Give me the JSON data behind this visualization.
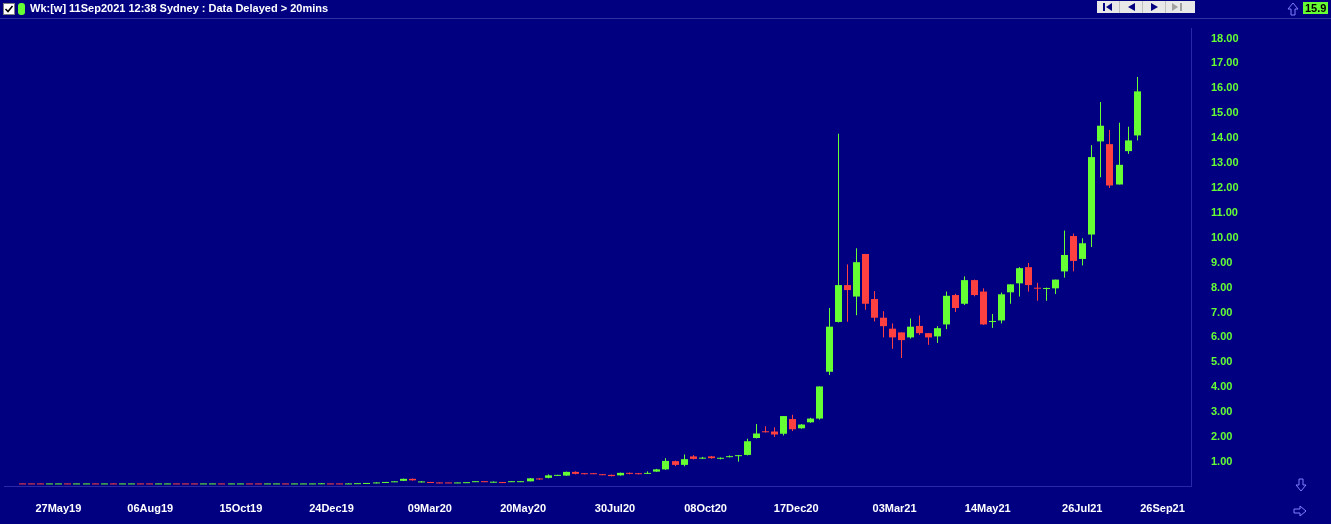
{
  "chart_data": {
    "type": "candlestick",
    "title": "Wk:[w]  11Sep2021 12:38 Sydney : Data Delayed > 20mins",
    "x": [
      "2019-04-29",
      "2019-05-06",
      "2019-05-13",
      "2019-05-20",
      "2019-05-27",
      "2019-06-03",
      "2019-06-10",
      "2019-06-17",
      "2019-06-24",
      "2019-07-01",
      "2019-07-08",
      "2019-07-15",
      "2019-07-22",
      "2019-07-29",
      "2019-08-05",
      "2019-08-12",
      "2019-08-19",
      "2019-08-26",
      "2019-09-02",
      "2019-09-09",
      "2019-09-16",
      "2019-09-23",
      "2019-09-30",
      "2019-10-07",
      "2019-10-14",
      "2019-10-21",
      "2019-10-28",
      "2019-11-04",
      "2019-11-11",
      "2019-11-18",
      "2019-11-25",
      "2019-12-02",
      "2019-12-09",
      "2019-12-16",
      "2019-12-23",
      "2019-12-30",
      "2020-01-06",
      "2020-01-13",
      "2020-01-20",
      "2020-01-27",
      "2020-02-03",
      "2020-02-10",
      "2020-02-17",
      "2020-02-24",
      "2020-03-02",
      "2020-03-09",
      "2020-03-16",
      "2020-03-23",
      "2020-03-30",
      "2020-04-06",
      "2020-04-13",
      "2020-04-20",
      "2020-04-27",
      "2020-05-04",
      "2020-05-11",
      "2020-05-18",
      "2020-05-25",
      "2020-06-01",
      "2020-06-08",
      "2020-06-15",
      "2020-06-22",
      "2020-06-29",
      "2020-07-06",
      "2020-07-13",
      "2020-07-20",
      "2020-07-27",
      "2020-08-03",
      "2020-08-10",
      "2020-08-17",
      "2020-08-24",
      "2020-08-31",
      "2020-09-07",
      "2020-09-14",
      "2020-09-21",
      "2020-09-28",
      "2020-10-05",
      "2020-10-12",
      "2020-10-19",
      "2020-10-26",
      "2020-11-02",
      "2020-11-09",
      "2020-11-16",
      "2020-11-23",
      "2020-11-30",
      "2020-12-07",
      "2020-12-14",
      "2020-12-21",
      "2020-12-28",
      "2021-01-04",
      "2021-01-11",
      "2021-01-18",
      "2021-01-25",
      "2021-02-01",
      "2021-02-08",
      "2021-02-15",
      "2021-02-22",
      "2021-03-01",
      "2021-03-08",
      "2021-03-15",
      "2021-03-22",
      "2021-03-29",
      "2021-04-05",
      "2021-04-12",
      "2021-04-19",
      "2021-04-26",
      "2021-05-03",
      "2021-05-10",
      "2021-05-17",
      "2021-05-24",
      "2021-05-31",
      "2021-06-07",
      "2021-06-14",
      "2021-06-21",
      "2021-06-28",
      "2021-07-05",
      "2021-07-12",
      "2021-07-19",
      "2021-07-26",
      "2021-08-02",
      "2021-08-09",
      "2021-08-16",
      "2021-08-23",
      "2021-08-30",
      "2021-09-06"
    ],
    "ohlc": [
      [
        0.12,
        0.12,
        0.11,
        0.11
      ],
      [
        0.12,
        0.12,
        0.11,
        0.11
      ],
      [
        0.12,
        0.12,
        0.11,
        0.11
      ],
      [
        0.11,
        0.12,
        0.11,
        0.12
      ],
      [
        0.11,
        0.12,
        0.11,
        0.12
      ],
      [
        0.12,
        0.12,
        0.11,
        0.11
      ],
      [
        0.11,
        0.12,
        0.11,
        0.12
      ],
      [
        0.11,
        0.12,
        0.11,
        0.12
      ],
      [
        0.12,
        0.12,
        0.11,
        0.11
      ],
      [
        0.11,
        0.12,
        0.11,
        0.12
      ],
      [
        0.12,
        0.14,
        0.11,
        0.11
      ],
      [
        0.11,
        0.12,
        0.11,
        0.12
      ],
      [
        0.11,
        0.12,
        0.11,
        0.12
      ],
      [
        0.12,
        0.12,
        0.11,
        0.11
      ],
      [
        0.12,
        0.12,
        0.11,
        0.11
      ],
      [
        0.11,
        0.12,
        0.11,
        0.12
      ],
      [
        0.11,
        0.12,
        0.11,
        0.12
      ],
      [
        0.12,
        0.12,
        0.11,
        0.11
      ],
      [
        0.12,
        0.12,
        0.11,
        0.11
      ],
      [
        0.12,
        0.12,
        0.11,
        0.11
      ],
      [
        0.11,
        0.12,
        0.11,
        0.12
      ],
      [
        0.11,
        0.12,
        0.11,
        0.12
      ],
      [
        0.12,
        0.12,
        0.11,
        0.11
      ],
      [
        0.11,
        0.12,
        0.11,
        0.12
      ],
      [
        0.11,
        0.12,
        0.11,
        0.12
      ],
      [
        0.12,
        0.12,
        0.11,
        0.11
      ],
      [
        0.12,
        0.12,
        0.11,
        0.11
      ],
      [
        0.11,
        0.12,
        0.11,
        0.12
      ],
      [
        0.11,
        0.12,
        0.11,
        0.12
      ],
      [
        0.12,
        0.12,
        0.11,
        0.11
      ],
      [
        0.11,
        0.12,
        0.11,
        0.12
      ],
      [
        0.11,
        0.12,
        0.11,
        0.12
      ],
      [
        0.11,
        0.12,
        0.11,
        0.12
      ],
      [
        0.12,
        0.14,
        0.11,
        0.12
      ],
      [
        0.12,
        0.12,
        0.11,
        0.11
      ],
      [
        0.12,
        0.12,
        0.11,
        0.11
      ],
      [
        0.11,
        0.14,
        0.11,
        0.12
      ],
      [
        0.12,
        0.13,
        0.12,
        0.13
      ],
      [
        0.13,
        0.15,
        0.13,
        0.14
      ],
      [
        0.14,
        0.18,
        0.14,
        0.17
      ],
      [
        0.17,
        0.19,
        0.16,
        0.18
      ],
      [
        0.19,
        0.22,
        0.19,
        0.21
      ],
      [
        0.24,
        0.33,
        0.23,
        0.32
      ],
      [
        0.32,
        0.33,
        0.25,
        0.26
      ],
      [
        0.19,
        0.23,
        0.18,
        0.2
      ],
      [
        0.18,
        0.18,
        0.16,
        0.17
      ],
      [
        0.16,
        0.17,
        0.14,
        0.15
      ],
      [
        0.16,
        0.16,
        0.15,
        0.15
      ],
      [
        0.15,
        0.17,
        0.15,
        0.16
      ],
      [
        0.16,
        0.17,
        0.16,
        0.17
      ],
      [
        0.2,
        0.21,
        0.19,
        0.21
      ],
      [
        0.21,
        0.21,
        0.19,
        0.2
      ],
      [
        0.18,
        0.21,
        0.17,
        0.19
      ],
      [
        0.18,
        0.19,
        0.15,
        0.16
      ],
      [
        0.2,
        0.21,
        0.19,
        0.21
      ],
      [
        0.2,
        0.22,
        0.19,
        0.21
      ],
      [
        0.22,
        0.35,
        0.22,
        0.34
      ],
      [
        0.33,
        0.34,
        0.28,
        0.3
      ],
      [
        0.36,
        0.5,
        0.34,
        0.46
      ],
      [
        0.45,
        0.48,
        0.44,
        0.47
      ],
      [
        0.45,
        0.61,
        0.44,
        0.6
      ],
      [
        0.6,
        0.62,
        0.5,
        0.52
      ],
      [
        0.53,
        0.54,
        0.5,
        0.52
      ],
      [
        0.53,
        0.54,
        0.51,
        0.52
      ],
      [
        0.49,
        0.5,
        0.47,
        0.48
      ],
      [
        0.48,
        0.49,
        0.42,
        0.43
      ],
      [
        0.46,
        0.57,
        0.45,
        0.56
      ],
      [
        0.55,
        0.57,
        0.5,
        0.53
      ],
      [
        0.53,
        0.55,
        0.5,
        0.52
      ],
      [
        0.53,
        0.62,
        0.52,
        0.55
      ],
      [
        0.61,
        0.72,
        0.6,
        0.7
      ],
      [
        0.7,
        1.15,
        0.68,
        1.04
      ],
      [
        1.03,
        1.05,
        0.83,
        0.88
      ],
      [
        0.88,
        1.3,
        0.82,
        1.11
      ],
      [
        1.22,
        1.27,
        1.1,
        1.12
      ],
      [
        1.14,
        1.2,
        1.12,
        1.16
      ],
      [
        1.22,
        1.24,
        1.13,
        1.15
      ],
      [
        1.14,
        1.18,
        1.1,
        1.15
      ],
      [
        1.2,
        1.26,
        1.18,
        1.22
      ],
      [
        1.24,
        1.28,
        1.01,
        1.26
      ],
      [
        1.28,
        1.93,
        1.26,
        1.83
      ],
      [
        1.96,
        2.52,
        1.94,
        2.14
      ],
      [
        2.22,
        2.43,
        2.18,
        2.2
      ],
      [
        2.22,
        2.39,
        2.0,
        2.1
      ],
      [
        2.13,
        2.84,
        2.06,
        2.84
      ],
      [
        2.72,
        2.89,
        2.24,
        2.31
      ],
      [
        2.35,
        2.52,
        2.33,
        2.5
      ],
      [
        2.59,
        2.77,
        2.57,
        2.74
      ],
      [
        2.74,
        4.03,
        2.7,
        4.03
      ],
      [
        4.62,
        7.18,
        4.49,
        6.43
      ],
      [
        6.62,
        14.18,
        6.6,
        8.1
      ],
      [
        8.1,
        8.93,
        6.63,
        7.9
      ],
      [
        7.64,
        9.58,
        6.89,
        9.02
      ],
      [
        9.35,
        9.35,
        7.11,
        7.35
      ],
      [
        7.54,
        7.86,
        6.64,
        6.79
      ],
      [
        6.79,
        7.05,
        6.0,
        6.45
      ],
      [
        6.35,
        6.56,
        5.54,
        6.0
      ],
      [
        6.2,
        6.2,
        5.17,
        5.89
      ],
      [
        6.0,
        6.76,
        5.95,
        6.43
      ],
      [
        6.46,
        6.88,
        6.1,
        6.17
      ],
      [
        6.17,
        6.17,
        5.7,
        6.0
      ],
      [
        6.04,
        6.45,
        5.78,
        6.37
      ],
      [
        6.52,
        7.84,
        6.33,
        7.67
      ],
      [
        7.7,
        7.75,
        7.02,
        7.18
      ],
      [
        7.35,
        8.45,
        7.3,
        8.3
      ],
      [
        8.3,
        8.32,
        7.65,
        7.7
      ],
      [
        7.84,
        7.97,
        6.5,
        6.52
      ],
      [
        6.62,
        6.94,
        6.38,
        6.66
      ],
      [
        6.68,
        7.8,
        6.56,
        7.73
      ],
      [
        7.81,
        8.13,
        7.35,
        8.13
      ],
      [
        8.17,
        8.82,
        7.64,
        8.78
      ],
      [
        8.82,
        8.99,
        7.84,
        8.1
      ],
      [
        7.98,
        8.19,
        7.47,
        7.97
      ],
      [
        7.96,
        8.0,
        7.47,
        7.97
      ],
      [
        7.97,
        8.32,
        7.74,
        8.32
      ],
      [
        8.65,
        10.29,
        8.4,
        9.31
      ],
      [
        10.07,
        10.17,
        8.65,
        9.07
      ],
      [
        9.15,
        9.98,
        8.89,
        9.78
      ],
      [
        10.13,
        13.72,
        9.63,
        13.24
      ],
      [
        13.87,
        15.45,
        12.43,
        14.5
      ],
      [
        13.76,
        14.33,
        12.0,
        12.1
      ],
      [
        12.14,
        14.62,
        12.14,
        12.93
      ],
      [
        13.48,
        14.46,
        13.37,
        13.91
      ],
      [
        14.11,
        16.46,
        13.91,
        15.88
      ]
    ],
    "colors": [
      "#ff4040",
      "#ff4040",
      "#ff4040",
      "#66ff33",
      "#66ff33",
      "#ff4040",
      "#66ff33",
      "#66ff33",
      "#ff4040",
      "#66ff33",
      "#ff4040",
      "#66ff33",
      "#66ff33",
      "#ff4040",
      "#ff4040",
      "#66ff33",
      "#66ff33",
      "#ff4040",
      "#ff4040",
      "#ff4040",
      "#66ff33",
      "#66ff33",
      "#ff4040",
      "#66ff33",
      "#66ff33",
      "#ff4040",
      "#ff4040",
      "#66ff33",
      "#66ff33",
      "#ff4040",
      "#66ff33",
      "#66ff33",
      "#66ff33",
      "#66ff33",
      "#ff4040",
      "#ff4040",
      "#66ff33",
      "#66ff33",
      "#66ff33",
      "#66ff33",
      "#66ff33",
      "#66ff33",
      "#66ff33",
      "#ff4040",
      "#66ff33",
      "#ff4040",
      "#ff4040",
      "#ff4040",
      "#66ff33",
      "#66ff33",
      "#66ff33",
      "#ff4040",
      "#66ff33",
      "#ff4040",
      "#66ff33",
      "#66ff33",
      "#66ff33",
      "#ff4040",
      "#66ff33",
      "#66ff33",
      "#66ff33",
      "#ff4040",
      "#ff4040",
      "#ff4040",
      "#ff4040",
      "#ff4040",
      "#66ff33",
      "#ff4040",
      "#ff4040",
      "#66ff33",
      "#66ff33",
      "#66ff33",
      "#ff4040",
      "#66ff33",
      "#ff4040",
      "#66ff33",
      "#ff4040",
      "#66ff33",
      "#66ff33",
      "#66ff33",
      "#66ff33",
      "#66ff33",
      "#ff4040",
      "#ff4040",
      "#66ff33",
      "#ff4040",
      "#66ff33",
      "#66ff33",
      "#66ff33",
      "#66ff33",
      "#66ff33",
      "#ff4040",
      "#66ff33",
      "#ff4040",
      "#ff4040",
      "#ff4040",
      "#ff4040",
      "#ff4040",
      "#66ff33",
      "#ff4040",
      "#ff4040",
      "#66ff33",
      "#66ff33",
      "#ff4040",
      "#66ff33",
      "#ff4040",
      "#ff4040",
      "#66ff33",
      "#66ff33",
      "#66ff33",
      "#66ff33",
      "#ff4040",
      "#ff4040",
      "#66ff33",
      "#66ff33",
      "#66ff33",
      "#ff4040",
      "#66ff33",
      "#66ff33",
      "#66ff33",
      "#ff4040",
      "#66ff33",
      "#66ff33",
      "#66ff33"
    ],
    "xlim": [
      "2019-04-15",
      "2021-10-18"
    ],
    "xticks": [
      {
        "value": "2019-05-27",
        "label": "27May19"
      },
      {
        "value": "2019-08-06",
        "label": "06Aug19"
      },
      {
        "value": "2019-10-15",
        "label": "15Oct19"
      },
      {
        "value": "2019-12-24",
        "label": "24Dec19"
      },
      {
        "value": "2020-03-09",
        "label": "09Mar20"
      },
      {
        "value": "2020-05-20",
        "label": "20May20"
      },
      {
        "value": "2020-07-30",
        "label": "30Jul20"
      },
      {
        "value": "2020-10-08",
        "label": "08Oct20"
      },
      {
        "value": "2020-12-17",
        "label": "17Dec20"
      },
      {
        "value": "2021-03-03",
        "label": "03Mar21"
      },
      {
        "value": "2021-05-14",
        "label": "14May21"
      },
      {
        "value": "2021-07-26",
        "label": "26Jul21"
      },
      {
        "value": "2021-09-26",
        "label": "26Sep21"
      }
    ],
    "ylim": [
      0,
      18.4
    ],
    "yticks": [
      {
        "value": 1,
        "label": "1.00"
      },
      {
        "value": 2,
        "label": "2.00"
      },
      {
        "value": 3,
        "label": "3.00"
      },
      {
        "value": 4,
        "label": "4.00"
      },
      {
        "value": 5,
        "label": "5.00"
      },
      {
        "value": 6,
        "label": "6.00"
      },
      {
        "value": 7,
        "label": "7.00"
      },
      {
        "value": 8,
        "label": "8.00"
      },
      {
        "value": 9,
        "label": "9.00"
      },
      {
        "value": 10,
        "label": "10.00"
      },
      {
        "value": 11,
        "label": "11.00"
      },
      {
        "value": 12,
        "label": "12.00"
      },
      {
        "value": 13,
        "label": "13.00"
      },
      {
        "value": 14,
        "label": "14.00"
      },
      {
        "value": 15,
        "label": "15.00"
      },
      {
        "value": 16,
        "label": "16.00"
      },
      {
        "value": 17,
        "label": "17.00"
      },
      {
        "value": 18,
        "label": "18.00"
      }
    ],
    "annotations": [
      "15.9"
    ]
  }
}
